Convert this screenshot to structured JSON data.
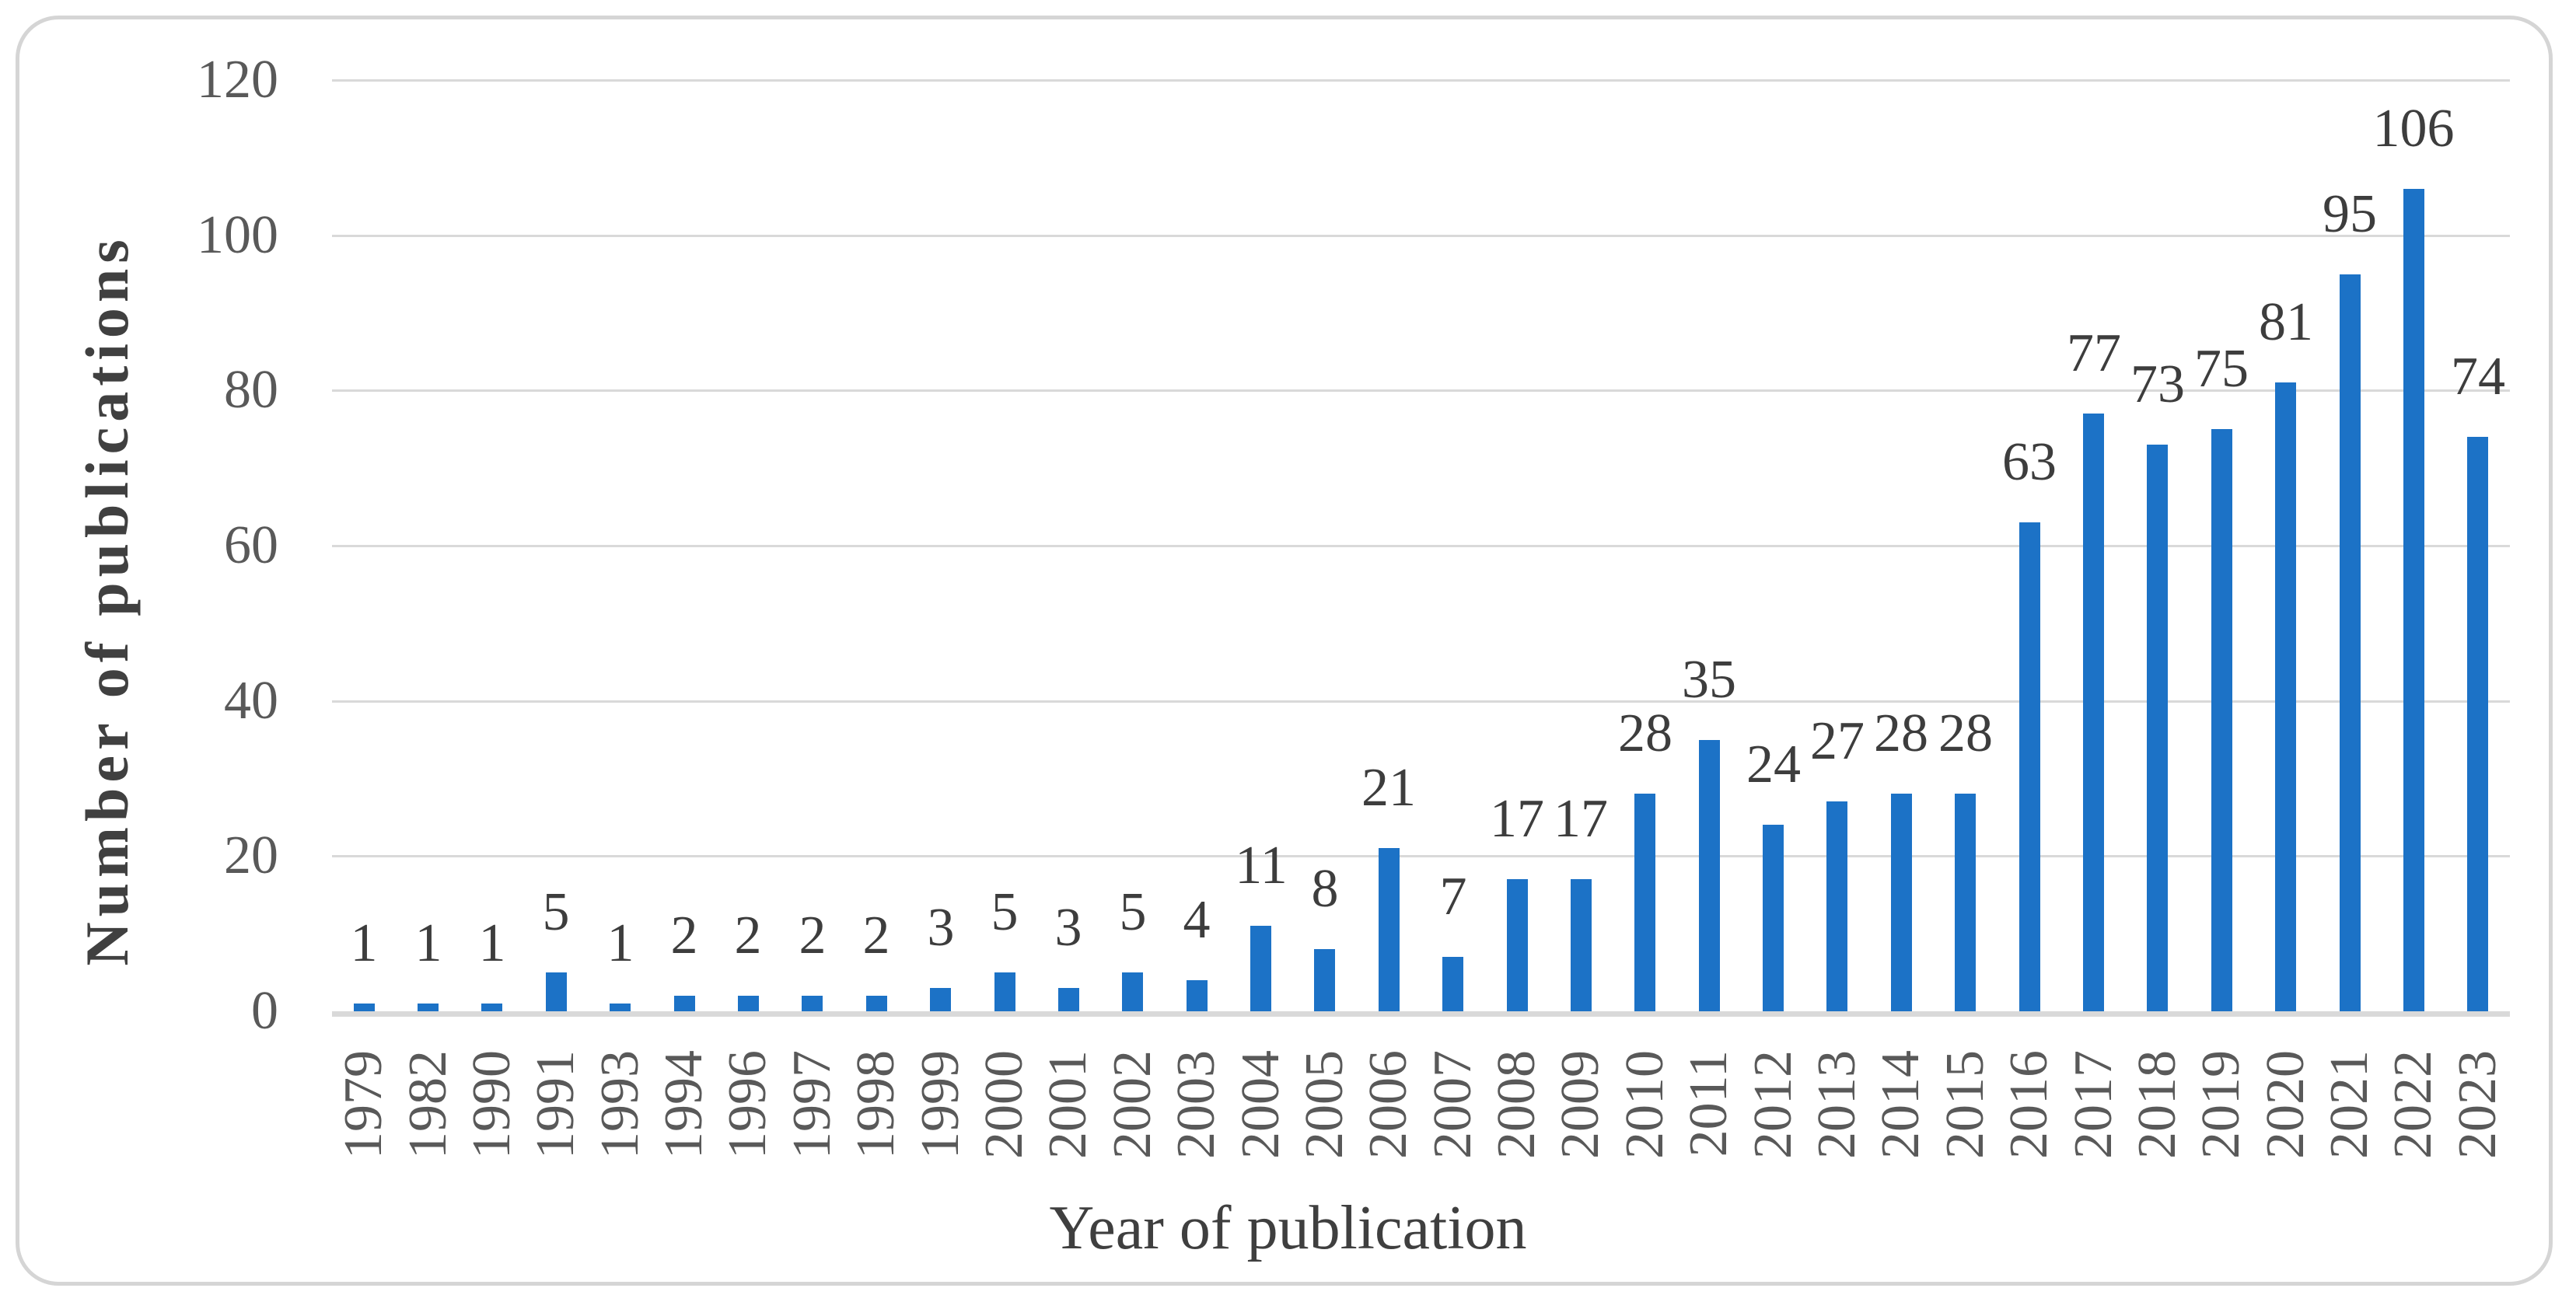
{
  "figure": {
    "background_color": "#ffffff",
    "frame_border_color": "#d5d5d5",
    "bar_color": "#1c72c6",
    "gridline_color": "#d9d9d9",
    "axis_line_color": "#d9d9d9",
    "tick_label_color": "#595959",
    "data_label_color": "#3d3d3d",
    "axis_title_color": "#404040"
  },
  "chart_data": {
    "type": "bar",
    "title": "",
    "xlabel": "Year of publication",
    "ylabel": "Number of publications",
    "categories": [
      "1979",
      "1982",
      "1990",
      "1991",
      "1993",
      "1994",
      "1996",
      "1997",
      "1998",
      "1999",
      "2000",
      "2001",
      "2002",
      "2003",
      "2004",
      "2005",
      "2006",
      "2007",
      "2008",
      "2009",
      "2010",
      "2011",
      "2012",
      "2013",
      "2014",
      "2015",
      "2016",
      "2017",
      "2018",
      "2019",
      "2020",
      "2021",
      "2022",
      "2023"
    ],
    "values": [
      1,
      1,
      1,
      5,
      1,
      2,
      2,
      2,
      2,
      3,
      5,
      3,
      5,
      4,
      11,
      8,
      21,
      7,
      17,
      17,
      28,
      35,
      24,
      27,
      28,
      28,
      63,
      77,
      73,
      75,
      81,
      95,
      106,
      74
    ],
    "ylim": [
      0,
      120
    ],
    "yticks": [
      0,
      20,
      40,
      60,
      80,
      100,
      120
    ],
    "grid": true,
    "legend": false,
    "data_labels": true,
    "x_tick_rotation_degrees": 90
  }
}
